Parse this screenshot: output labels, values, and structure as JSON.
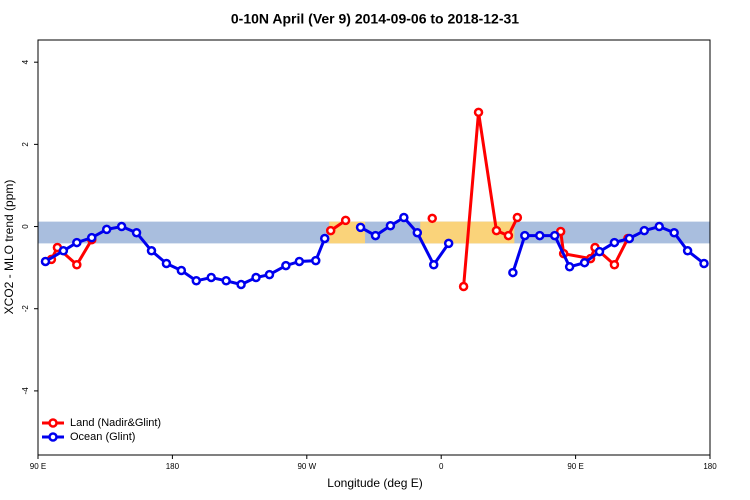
{
  "chart_data": {
    "type": "line",
    "title": "0-10N April (Ver 9)   2014-09-06 to 2018-12-31",
    "x_label": "Longitude (deg E)",
    "y_label": "XCO2 - MLO trend (ppm)",
    "xlim": [
      90,
      540
    ],
    "ylim": [
      -5.56,
      4.54
    ],
    "xticks": [
      {
        "value": 90,
        "label": "90 E"
      },
      180,
      {
        "value": 270,
        "label": "90 W"
      },
      {
        "value": 360,
        "label": "0"
      },
      {
        "value": 450,
        "label": "90 E"
      },
      {
        "value": 540,
        "label": "180"
      }
    ],
    "yticks": [
      -4,
      -2,
      0,
      2,
      4
    ],
    "band": {
      "range": [
        -0.41,
        0.12
      ],
      "color": "#a9bede"
    },
    "land_regions": {
      "color": "#fad37a",
      "ranges": [
        [
          285,
          309
        ],
        [
          346,
          409
        ]
      ]
    },
    "legend": "bottom-left",
    "series": [
      {
        "name": "Land (Nadir&Glint)",
        "color": "#ff0000",
        "x": [
          99,
          103,
          116,
          126,
          null,
          286,
          296,
          null,
          354,
          null,
          375,
          385,
          397,
          405,
          411,
          null,
          440,
          442,
          460,
          463,
          476,
          485
        ],
        "values": [
          -0.8,
          -0.51,
          -0.93,
          -0.32,
          null,
          -0.1,
          0.15,
          null,
          0.2,
          null,
          -1.46,
          2.78,
          -0.1,
          -0.22,
          0.22,
          null,
          -0.12,
          -0.66,
          -0.78,
          -0.51,
          -0.93,
          -0.29
        ]
      },
      {
        "name": "Ocean (Glint)",
        "color": "#0000ee",
        "x": [
          95,
          107,
          116,
          126,
          136,
          146,
          156,
          166,
          176,
          186,
          196,
          206,
          216,
          226,
          236,
          245,
          256,
          265,
          276,
          282,
          null,
          306,
          316,
          326,
          335,
          344,
          355,
          365,
          null,
          408,
          416,
          426,
          436,
          446,
          456,
          466,
          476,
          486,
          496,
          506,
          516,
          525,
          536
        ],
        "values": [
          -0.85,
          -0.59,
          -0.39,
          -0.27,
          -0.07,
          0,
          -0.15,
          -0.59,
          -0.9,
          -1.07,
          -1.32,
          -1.24,
          -1.32,
          -1.41,
          -1.24,
          -1.17,
          -0.95,
          -0.85,
          -0.83,
          -0.29,
          null,
          -0.02,
          -0.22,
          0.02,
          0.22,
          -0.15,
          -0.93,
          -0.41,
          null,
          -1.12,
          -0.22,
          -0.22,
          -0.22,
          -0.98,
          -0.88,
          -0.61,
          -0.39,
          -0.29,
          -0.1,
          0,
          -0.15,
          -0.59,
          -0.9
        ]
      }
    ]
  }
}
